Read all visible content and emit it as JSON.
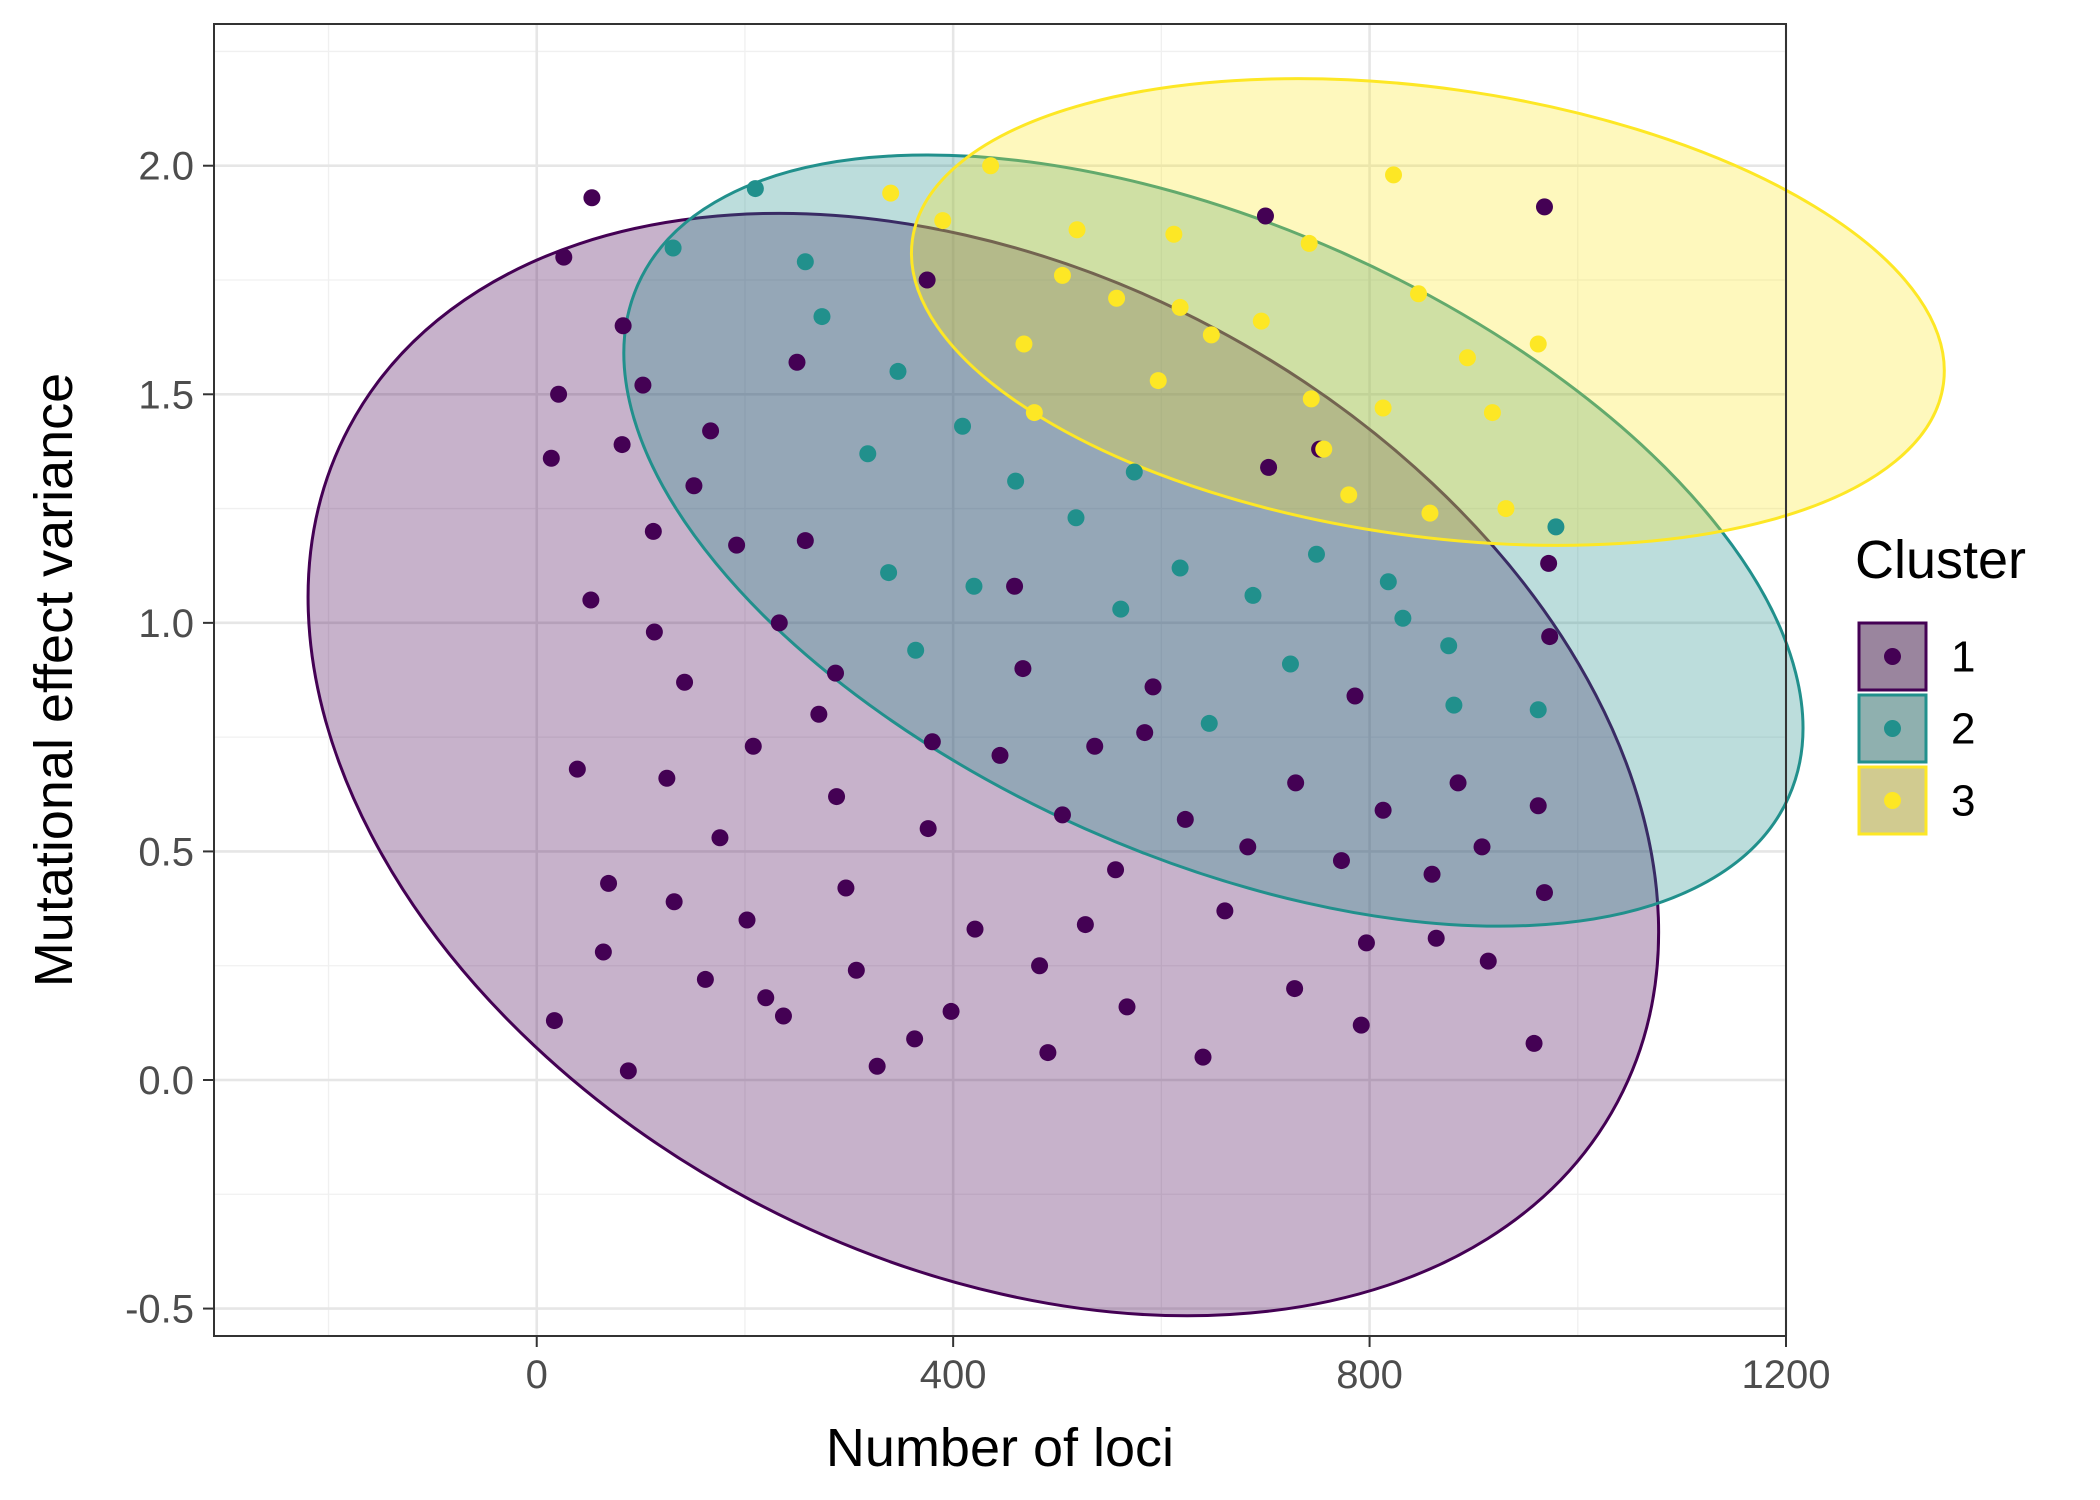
{
  "chart_data": {
    "type": "scatter",
    "title": "",
    "xlabel": "Number of loci",
    "ylabel": "Mutational effect variance",
    "xlim": [
      -310,
      1200
    ],
    "ylim": [
      -0.56,
      2.31
    ],
    "x_ticks": [
      0,
      400,
      800,
      1200
    ],
    "x_tick_labels": [
      "0",
      "400",
      "800",
      "1200"
    ],
    "y_ticks": [
      -0.5,
      0.0,
      0.5,
      1.0,
      1.5,
      2.0
    ],
    "y_tick_labels": [
      "-0.5",
      "0.0",
      "0.5",
      "1.0",
      "1.5",
      "2.0"
    ],
    "grid": true,
    "legend": {
      "title": "Cluster",
      "position": "right",
      "entries": [
        "1",
        "2",
        "3"
      ]
    },
    "series": [
      {
        "name": "1",
        "color": "#440154",
        "ellipse": {
          "center": [
            429,
            0.69
          ],
          "semi_axes": [
            690,
            1.08
          ],
          "tilt_deg": -28
        },
        "points": [
          [
            53,
            1.93
          ],
          [
            26,
            1.8
          ],
          [
            14,
            1.36
          ],
          [
            21,
            1.5
          ],
          [
            82,
            1.39
          ],
          [
            83,
            1.65
          ],
          [
            102,
            1.52
          ],
          [
            112,
            1.2
          ],
          [
            113,
            0.98
          ],
          [
            151,
            1.3
          ],
          [
            167,
            1.42
          ],
          [
            142,
            0.87
          ],
          [
            192,
            1.17
          ],
          [
            52,
            1.05
          ],
          [
            39,
            0.68
          ],
          [
            125,
            0.66
          ],
          [
            208,
            0.73
          ],
          [
            176,
            0.53
          ],
          [
            233,
            1.0
          ],
          [
            258,
            1.18
          ],
          [
            271,
            0.8
          ],
          [
            287,
            0.89
          ],
          [
            288,
            0.62
          ],
          [
            297,
            0.42
          ],
          [
            69,
            0.43
          ],
          [
            64,
            0.28
          ],
          [
            132,
            0.39
          ],
          [
            162,
            0.22
          ],
          [
            202,
            0.35
          ],
          [
            220,
            0.18
          ],
          [
            237,
            0.14
          ],
          [
            307,
            0.24
          ],
          [
            327,
            0.03
          ],
          [
            363,
            0.09
          ],
          [
            398,
            0.15
          ],
          [
            421,
            0.33
          ],
          [
            376,
            0.55
          ],
          [
            380,
            0.74
          ],
          [
            445,
            0.71
          ],
          [
            467,
            0.9
          ],
          [
            459,
            1.08
          ],
          [
            483,
            0.25
          ],
          [
            491,
            0.06
          ],
          [
            505,
            0.58
          ],
          [
            527,
            0.34
          ],
          [
            556,
            0.46
          ],
          [
            567,
            0.16
          ],
          [
            536,
            0.73
          ],
          [
            584,
            0.76
          ],
          [
            592,
            0.86
          ],
          [
            623,
            0.57
          ],
          [
            640,
            0.05
          ],
          [
            661,
            0.37
          ],
          [
            683,
            0.51
          ],
          [
            700,
            1.89
          ],
          [
            703,
            1.34
          ],
          [
            728,
            0.2
          ],
          [
            729,
            0.65
          ],
          [
            752,
            1.38
          ],
          [
            773,
            0.48
          ],
          [
            786,
            0.84
          ],
          [
            792,
            0.12
          ],
          [
            797,
            0.3
          ],
          [
            813,
            0.59
          ],
          [
            860,
            0.45
          ],
          [
            864,
            0.31
          ],
          [
            885,
            0.65
          ],
          [
            908,
            0.51
          ],
          [
            914,
            0.26
          ],
          [
            958,
            0.08
          ],
          [
            962,
            0.6
          ],
          [
            968,
            0.41
          ],
          [
            972,
            1.13
          ],
          [
            973,
            0.97
          ],
          [
            968,
            1.91
          ],
          [
            17,
            0.13
          ],
          [
            88,
            0.02
          ],
          [
            250,
            1.57
          ],
          [
            375,
            1.75
          ]
        ]
      },
      {
        "name": "2",
        "color": "#21908C",
        "ellipse": {
          "center": [
            650,
            1.18
          ],
          "semi_axes": [
            605,
            0.69
          ],
          "tilt_deg": -24
        },
        "points": [
          [
            131,
            1.82
          ],
          [
            210,
            1.95
          ],
          [
            258,
            1.79
          ],
          [
            274,
            1.67
          ],
          [
            318,
            1.37
          ],
          [
            338,
            1.11
          ],
          [
            347,
            1.55
          ],
          [
            364,
            0.94
          ],
          [
            409,
            1.43
          ],
          [
            420,
            1.08
          ],
          [
            460,
            1.31
          ],
          [
            518,
            1.23
          ],
          [
            561,
            1.03
          ],
          [
            574,
            1.33
          ],
          [
            618,
            1.12
          ],
          [
            646,
            0.78
          ],
          [
            688,
            1.06
          ],
          [
            724,
            0.91
          ],
          [
            749,
            1.15
          ],
          [
            818,
            1.09
          ],
          [
            832,
            1.01
          ],
          [
            876,
            0.95
          ],
          [
            881,
            0.82
          ],
          [
            962,
            0.81
          ],
          [
            979,
            1.21
          ]
        ]
      },
      {
        "name": "3",
        "color": "#FDE725",
        "ellipse": {
          "center": [
            856,
            1.68
          ],
          "semi_axes": [
            500,
            0.49
          ],
          "tilt_deg": -8
        },
        "points": [
          [
            340,
            1.94
          ],
          [
            390,
            1.88
          ],
          [
            436,
            2.0
          ],
          [
            468,
            1.61
          ],
          [
            478,
            1.46
          ],
          [
            505,
            1.76
          ],
          [
            519,
            1.86
          ],
          [
            557,
            1.71
          ],
          [
            597,
            1.53
          ],
          [
            612,
            1.85
          ],
          [
            618,
            1.69
          ],
          [
            648,
            1.63
          ],
          [
            696,
            1.66
          ],
          [
            742,
            1.83
          ],
          [
            744,
            1.49
          ],
          [
            756,
            1.38
          ],
          [
            780,
            1.28
          ],
          [
            813,
            1.47
          ],
          [
            823,
            1.98
          ],
          [
            847,
            1.72
          ],
          [
            858,
            1.24
          ],
          [
            894,
            1.58
          ],
          [
            918,
            1.46
          ],
          [
            931,
            1.25
          ],
          [
            962,
            1.61
          ]
        ]
      }
    ]
  }
}
